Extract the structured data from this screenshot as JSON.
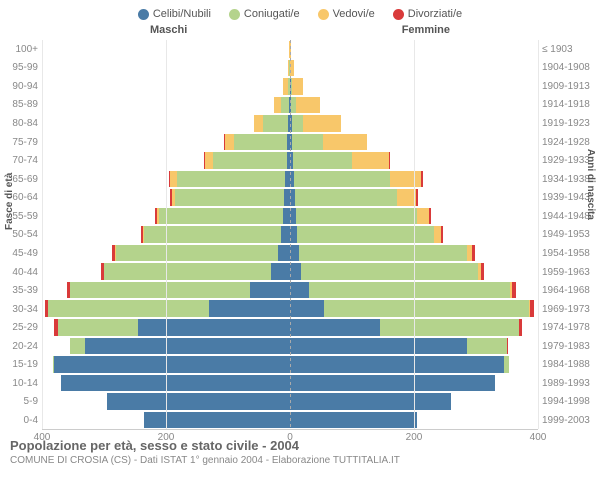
{
  "legend": [
    {
      "label": "Celibi/Nubili",
      "color": "#4a7ba6"
    },
    {
      "label": "Coniugati/e",
      "color": "#b4d38c"
    },
    {
      "label": "Vedovi/e",
      "color": "#f8c76a"
    },
    {
      "label": "Divorziati/e",
      "color": "#d93a3a"
    }
  ],
  "side_labels": {
    "left": "Maschi",
    "right": "Femmine"
  },
  "y_title_left": "Fasce di età",
  "y_title_right": "Anni di nascita",
  "age_groups": [
    "100+",
    "95-99",
    "90-94",
    "85-89",
    "80-84",
    "75-79",
    "70-74",
    "65-69",
    "60-64",
    "55-59",
    "50-54",
    "45-49",
    "40-44",
    "35-39",
    "30-34",
    "25-29",
    "20-24",
    "15-19",
    "10-14",
    "5-9",
    "0-4"
  ],
  "birth_years": [
    "≤ 1903",
    "1904-1908",
    "1909-1913",
    "1914-1918",
    "1919-1923",
    "1924-1928",
    "1929-1933",
    "1934-1938",
    "1939-1943",
    "1944-1948",
    "1949-1953",
    "1954-1958",
    "1959-1963",
    "1964-1968",
    "1969-1973",
    "1974-1978",
    "1979-1983",
    "1984-1988",
    "1989-1993",
    "1994-1998",
    "1999-2003"
  ],
  "x_ticks": [
    400,
    200,
    0,
    200,
    400
  ],
  "x_max": 400,
  "colors": {
    "cel": "#4a7ba6",
    "con": "#b4d38c",
    "ved": "#f8c76a",
    "div": "#d93a3a",
    "grid": "#e8e8e8"
  },
  "data": {
    "male": [
      {
        "cel": 0,
        "con": 0,
        "ved": 1,
        "div": 0
      },
      {
        "cel": 0,
        "con": 1,
        "ved": 3,
        "div": 0
      },
      {
        "cel": 0,
        "con": 3,
        "ved": 8,
        "div": 0
      },
      {
        "cel": 2,
        "con": 12,
        "ved": 12,
        "div": 0
      },
      {
        "cel": 3,
        "con": 40,
        "ved": 15,
        "div": 0
      },
      {
        "cel": 5,
        "con": 85,
        "ved": 15,
        "div": 2
      },
      {
        "cel": 5,
        "con": 120,
        "ved": 12,
        "div": 2
      },
      {
        "cel": 8,
        "con": 175,
        "ved": 10,
        "div": 3
      },
      {
        "cel": 10,
        "con": 175,
        "ved": 5,
        "div": 3
      },
      {
        "cel": 12,
        "con": 200,
        "ved": 3,
        "div": 3
      },
      {
        "cel": 15,
        "con": 220,
        "ved": 2,
        "div": 3
      },
      {
        "cel": 20,
        "con": 260,
        "ved": 2,
        "div": 5
      },
      {
        "cel": 30,
        "con": 270,
        "ved": 0,
        "div": 5
      },
      {
        "cel": 65,
        "con": 290,
        "ved": 0,
        "div": 5
      },
      {
        "cel": 130,
        "con": 260,
        "ved": 0,
        "div": 5
      },
      {
        "cel": 245,
        "con": 130,
        "ved": 0,
        "div": 5
      },
      {
        "cel": 330,
        "con": 25,
        "ved": 0,
        "div": 0
      },
      {
        "cel": 380,
        "con": 2,
        "ved": 0,
        "div": 0
      },
      {
        "cel": 370,
        "con": 0,
        "ved": 0,
        "div": 0
      },
      {
        "cel": 295,
        "con": 0,
        "ved": 0,
        "div": 0
      },
      {
        "cel": 235,
        "con": 0,
        "ved": 0,
        "div": 0
      }
    ],
    "female": [
      {
        "cel": 0,
        "con": 0,
        "ved": 2,
        "div": 0
      },
      {
        "cel": 0,
        "con": 0,
        "ved": 6,
        "div": 0
      },
      {
        "cel": 1,
        "con": 2,
        "ved": 18,
        "div": 0
      },
      {
        "cel": 2,
        "con": 8,
        "ved": 38,
        "div": 0
      },
      {
        "cel": 3,
        "con": 18,
        "ved": 62,
        "div": 0
      },
      {
        "cel": 4,
        "con": 50,
        "ved": 70,
        "div": 0
      },
      {
        "cel": 5,
        "con": 95,
        "ved": 60,
        "div": 2
      },
      {
        "cel": 6,
        "con": 155,
        "ved": 50,
        "div": 3
      },
      {
        "cel": 8,
        "con": 165,
        "ved": 30,
        "div": 3
      },
      {
        "cel": 10,
        "con": 195,
        "ved": 20,
        "div": 3
      },
      {
        "cel": 12,
        "con": 220,
        "ved": 12,
        "div": 3
      },
      {
        "cel": 15,
        "con": 270,
        "ved": 8,
        "div": 5
      },
      {
        "cel": 18,
        "con": 285,
        "ved": 5,
        "div": 5
      },
      {
        "cel": 30,
        "con": 325,
        "ved": 3,
        "div": 7
      },
      {
        "cel": 55,
        "con": 330,
        "ved": 2,
        "div": 7
      },
      {
        "cel": 145,
        "con": 225,
        "ved": 0,
        "div": 5
      },
      {
        "cel": 285,
        "con": 65,
        "ved": 0,
        "div": 2
      },
      {
        "cel": 345,
        "con": 8,
        "ved": 0,
        "div": 0
      },
      {
        "cel": 330,
        "con": 0,
        "ved": 0,
        "div": 0
      },
      {
        "cel": 260,
        "con": 0,
        "ved": 0,
        "div": 0
      },
      {
        "cel": 205,
        "con": 0,
        "ved": 0,
        "div": 0
      }
    ]
  },
  "footer": {
    "title": "Popolazione per età, sesso e stato civile - 2004",
    "subtitle": "COMUNE DI CROSIA (CS) - Dati ISTAT 1° gennaio 2004 - Elaborazione TUTTITALIA.IT"
  }
}
